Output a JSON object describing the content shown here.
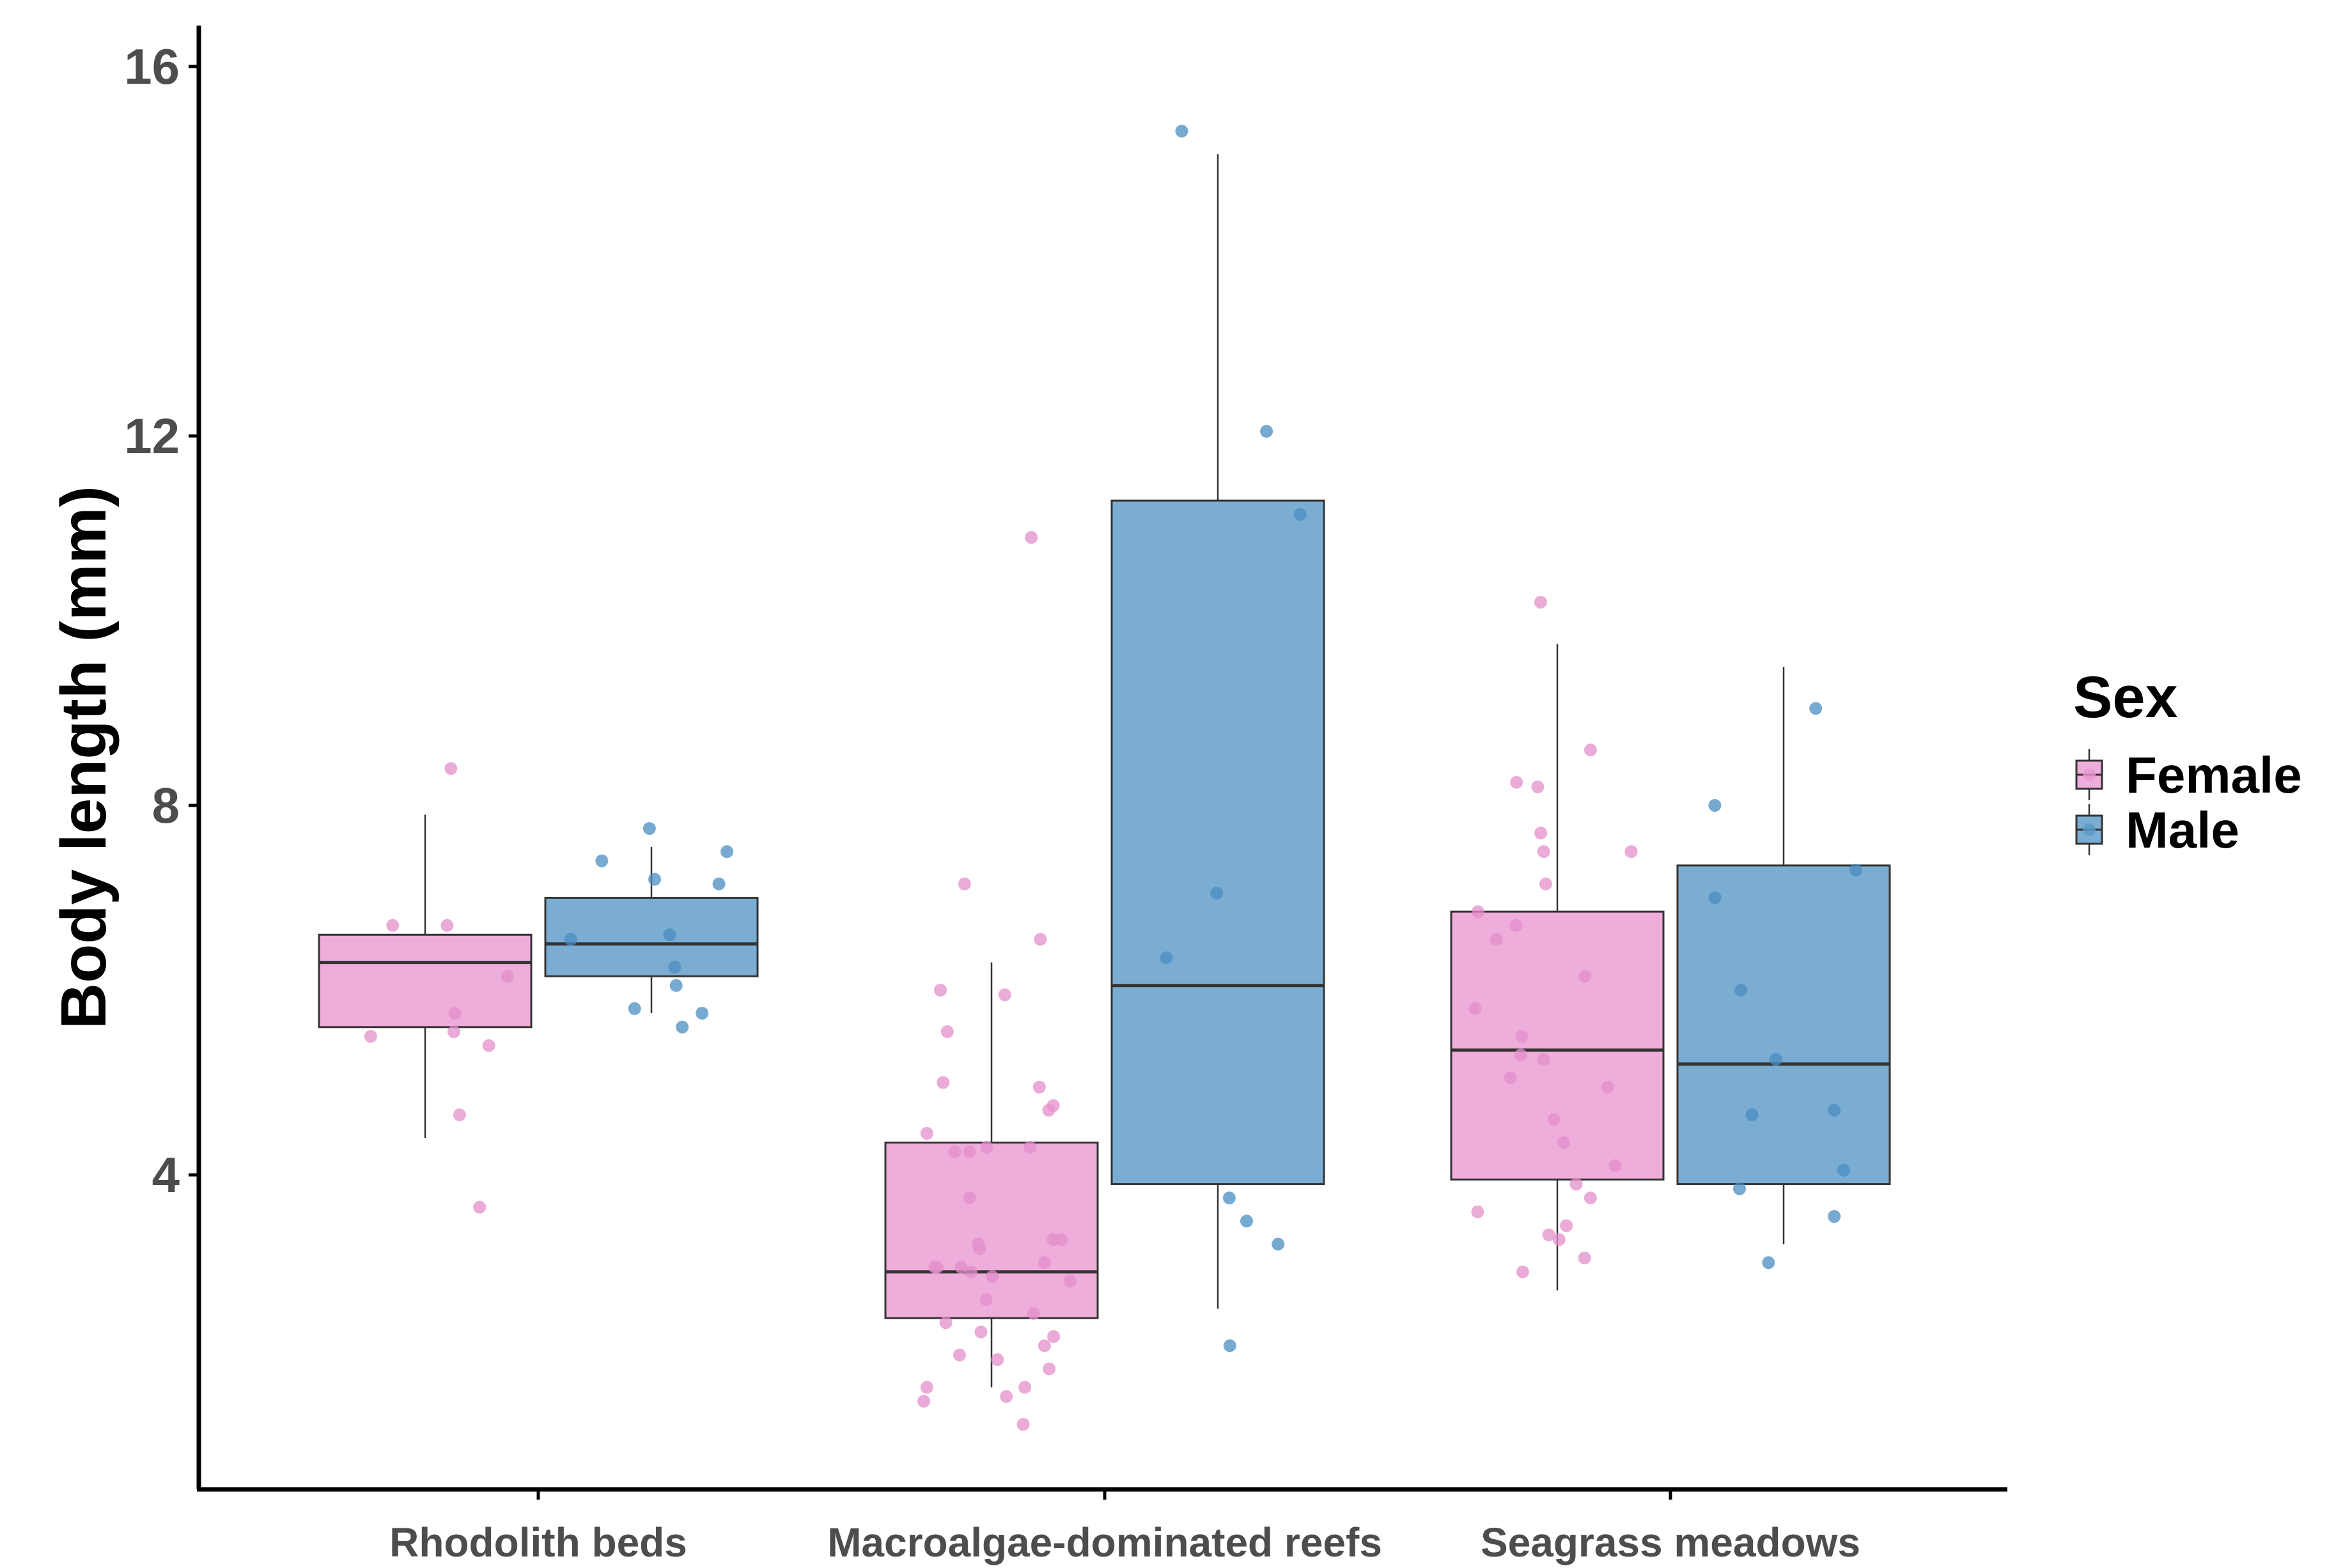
{
  "chart_data": {
    "type": "boxplot",
    "title": "",
    "xlabel": "",
    "ylabel": "Body length (mm)",
    "ylim": [
      0.6,
      16.5
    ],
    "yticks": [
      4,
      8,
      12,
      16
    ],
    "ytick_labels": [
      "4",
      "8",
      "12",
      "16"
    ],
    "categories": [
      "Rhodolith beds",
      "Macroalgae-dominated reefs",
      "Seagrass meadows"
    ],
    "legend": {
      "title": "Sex",
      "placement": "right",
      "entries": [
        {
          "label": "Female",
          "color": "#e899d0"
        },
        {
          "label": "Male",
          "color": "#5b9bc8"
        }
      ]
    },
    "colors": {
      "female_fill": "#efaddb",
      "female_point": "#e38fcb",
      "male_fill": "#7badd3",
      "male_point": "#4a8ec2",
      "box_stroke": "#333333",
      "axis": "#000000"
    },
    "series": [
      {
        "name": "Female",
        "boxes": [
          {
            "category": "Rhodolith beds",
            "whisker_low": 4.4,
            "q1": 5.6,
            "median": 6.3,
            "q3": 6.6,
            "whisker_high": 7.9,
            "points": [
              8.4,
              6.7,
              6.7,
              6.15,
              5.75,
              5.55,
              5.5,
              5.4,
              4.65,
              3.65
            ]
          },
          {
            "category": "Macroalgae-dominated reefs",
            "whisker_low": 1.7,
            "q1": 2.45,
            "median": 2.95,
            "q3": 4.35,
            "whisker_high": 6.3,
            "points": [
              10.9,
              7.15,
              6.55,
              6.0,
              5.95,
              5.55,
              5.0,
              4.95,
              4.75,
              4.7,
              4.45,
              4.3,
              4.3,
              4.25,
              4.25,
              3.75,
              3.3,
              3.3,
              3.25,
              3.2,
              3.05,
              3.0,
              3.0,
              3.0,
              2.95,
              2.9,
              2.85,
              2.65,
              2.5,
              2.4,
              2.3,
              2.25,
              2.15,
              2.05,
              2.0,
              1.9,
              1.7,
              1.7,
              1.6,
              1.55,
              1.3
            ]
          },
          {
            "category": "Seagrass meadows",
            "whisker_low": 2.75,
            "q1": 3.95,
            "median": 5.35,
            "q3": 6.85,
            "whisker_high": 9.75,
            "points": [
              10.2,
              8.6,
              8.25,
              8.2,
              7.7,
              7.5,
              7.5,
              7.15,
              6.85,
              6.7,
              6.55,
              6.15,
              5.8,
              5.5,
              5.3,
              5.25,
              5.05,
              4.95,
              4.6,
              4.35,
              4.1,
              3.9,
              3.75,
              3.6,
              3.45,
              3.35,
              3.3,
              3.1,
              2.95
            ]
          }
        ]
      },
      {
        "name": "Male",
        "boxes": [
          {
            "category": "Rhodolith beds",
            "whisker_low": 5.75,
            "q1": 6.15,
            "median": 6.5,
            "q3": 7.0,
            "whisker_high": 7.55,
            "points": [
              7.75,
              7.5,
              7.4,
              7.2,
              7.15,
              6.6,
              6.55,
              6.25,
              6.05,
              5.8,
              5.75,
              5.6
            ]
          },
          {
            "category": "Macroalgae-dominated reefs",
            "whisker_low": 2.55,
            "q1": 3.9,
            "median": 6.05,
            "q3": 11.3,
            "whisker_high": 15.05,
            "points": [
              15.3,
              12.05,
              11.15,
              7.05,
              6.35,
              3.75,
              3.5,
              3.25,
              2.15
            ]
          },
          {
            "category": "Seagrass meadows",
            "whisker_low": 3.25,
            "q1": 3.9,
            "median": 5.2,
            "q3": 7.35,
            "whisker_high": 9.5,
            "points": [
              9.05,
              8.0,
              7.3,
              7.0,
              6.0,
              5.25,
              4.7,
              4.65,
              4.05,
              3.85,
              3.55,
              3.05
            ]
          }
        ]
      }
    ]
  }
}
